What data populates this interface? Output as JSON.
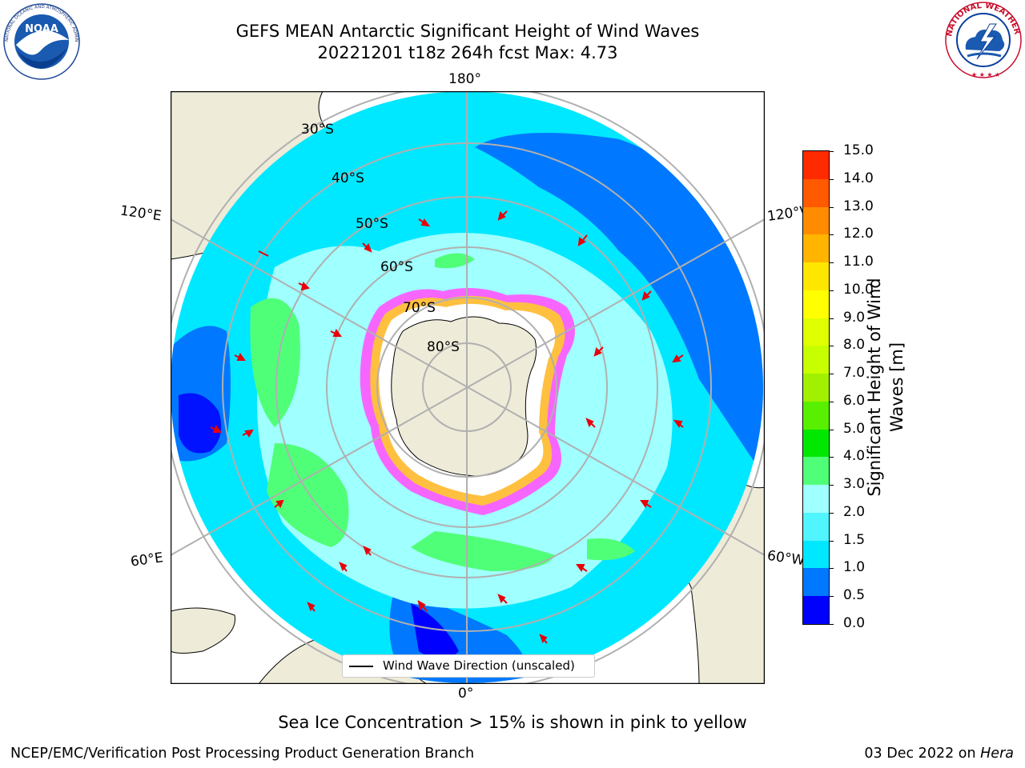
{
  "header": {
    "title_line1": "GEFS MEAN Antarctic Significant Height of Wind Waves",
    "title_line2": "20221201 t18z 264h fcst   Max: 4.73"
  },
  "logos": {
    "noaa": {
      "text": "NOAA",
      "ring": "NATIONAL OCEANIC AND ATMOSPHERIC ADMINISTRATION · U.S. DEPARTMENT OF COMMERCE ·"
    },
    "nws": {
      "ring": "NATIONAL WEATHER SERVICE"
    }
  },
  "map": {
    "projection": "south-polar-stereographic",
    "longitude_labels": {
      "top": "180°",
      "bottom": "0°",
      "left_upper": "120°E",
      "left_lower": "60°E",
      "right_upper": "120°W",
      "right_lower": "60°W"
    },
    "latitude_labels": [
      "30°S",
      "40°S",
      "50°S",
      "60°S",
      "70°S",
      "80°S"
    ],
    "legend_label": "Wind Wave Direction (unscaled)",
    "arrow_color": "#e8000b",
    "land_color": "#eeebd8",
    "grid_color": "#b0b0b0"
  },
  "colorbar": {
    "label": "Significant Height of Wind Waves [m]",
    "label_line1": "Significant Height of Wind",
    "label_line2": "Waves [m]",
    "ticks": [
      "15.0",
      "14.0",
      "13.0",
      "12.0",
      "11.0",
      "10.0",
      "9.0",
      "8.0",
      "7.0",
      "6.0",
      "5.0",
      "4.0",
      "3.0",
      "2.0",
      "1.5",
      "1.0",
      "0.5",
      "0.0"
    ],
    "colors_bottom_to_top": [
      "#0000ff",
      "#0078ff",
      "#00e8ff",
      "#50f5ff",
      "#a0ffff",
      "#50ff78",
      "#00e800",
      "#58f000",
      "#a0f000",
      "#c8ff00",
      "#e0ff00",
      "#ffff00",
      "#ffe600",
      "#ffb400",
      "#ff8c00",
      "#ff5a00",
      "#ff2a00"
    ]
  },
  "notes": {
    "sea_ice": "Sea Ice Concentration > 15% is shown in pink to yellow"
  },
  "footer": {
    "left": "NCEP/EMC/Verification Post Processing Product Generation Branch",
    "right_prefix": "03 Dec 2022 on ",
    "right_machine": "Hera"
  }
}
